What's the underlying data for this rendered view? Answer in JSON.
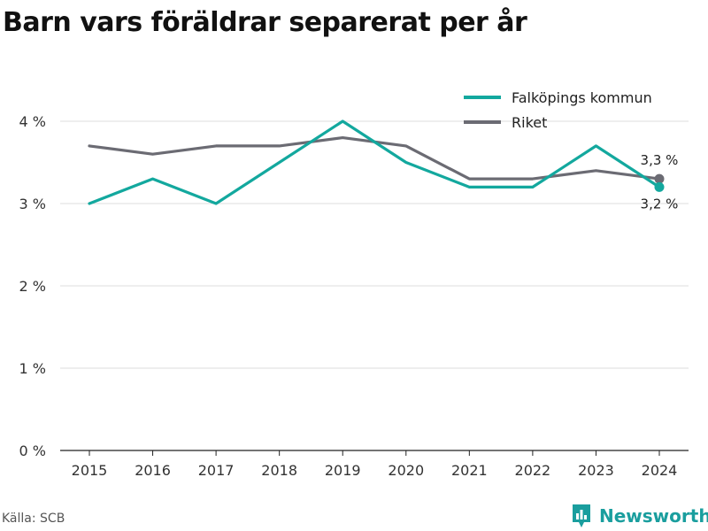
{
  "title": "Barn vars föräldrar separerat per år",
  "source": "Källa: SCB",
  "brand": "Newsworthy",
  "colors": {
    "falkoping": "#13a89e",
    "riket": "#6b6b73",
    "grid": "#dddddd",
    "axis": "#222222",
    "brand": "#1a9e9e"
  },
  "chart_data": {
    "type": "line",
    "x": [
      "2015",
      "2016",
      "2017",
      "2018",
      "2019",
      "2020",
      "2021",
      "2022",
      "2023",
      "2024"
    ],
    "ylim": [
      0,
      4
    ],
    "yticks": [
      0,
      1,
      2,
      3,
      4
    ],
    "ytick_labels": [
      "0 %",
      "1 %",
      "2 %",
      "3 %",
      "4 %"
    ],
    "grid": true,
    "legend_position": "top-right",
    "series": [
      {
        "name": "Falköpings kommun",
        "color": "#13a89e",
        "values": [
          3.0,
          3.3,
          3.0,
          3.5,
          4.0,
          3.5,
          3.2,
          3.2,
          3.7,
          3.2
        ],
        "end_label": "3,2 %"
      },
      {
        "name": "Riket",
        "color": "#6b6b73",
        "values": [
          3.7,
          3.6,
          3.7,
          3.7,
          3.8,
          3.7,
          3.3,
          3.3,
          3.4,
          3.3
        ],
        "end_label": "3,3 %"
      }
    ]
  }
}
